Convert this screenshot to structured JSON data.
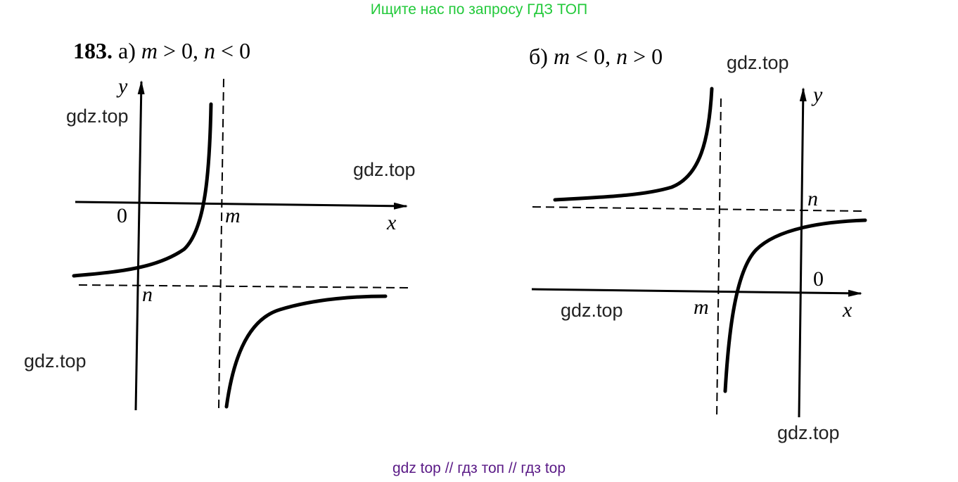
{
  "banner": "Ищите нас по запросу ГДЗ ТОП",
  "footer": "gdz top  //  гдз топ  //  гдз top",
  "problem": {
    "number": "183.",
    "part_a": {
      "marker": "а)",
      "condition_m": "m",
      "condition_m_rel": " > 0, ",
      "condition_n": "n",
      "condition_n_rel": " < 0"
    },
    "part_b": {
      "marker": "б)",
      "condition_m": "m",
      "condition_m_rel": " < 0, ",
      "condition_n": "n",
      "condition_n_rel": " > 0"
    }
  },
  "graph_a": {
    "x_label": "x",
    "y_label": "y",
    "origin_label": "0",
    "m_label": "m",
    "n_label": "n"
  },
  "graph_b": {
    "x_label": "x",
    "y_label": "y",
    "origin_label": "0",
    "m_label": "m",
    "n_label": "n"
  },
  "watermarks": [
    "gdz.top",
    "gdz.top",
    "gdz.top",
    "gdz.top",
    "gdz.top",
    "gdz.top"
  ]
}
